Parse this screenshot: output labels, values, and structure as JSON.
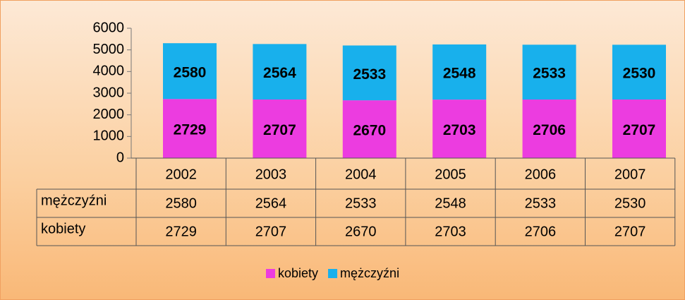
{
  "chart_data": {
    "type": "stacked_bar",
    "categories": [
      "2002",
      "2003",
      "2004",
      "2005",
      "2006",
      "2007"
    ],
    "series": [
      {
        "name": "kobiety",
        "color": "#ec3ce0",
        "values": [
          2729,
          2707,
          2670,
          2703,
          2706,
          2707
        ]
      },
      {
        "name": "mężczyźni",
        "color": "#18b0ec",
        "values": [
          2580,
          2564,
          2533,
          2548,
          2533,
          2530
        ]
      }
    ],
    "ylim": [
      0,
      6000
    ],
    "yticks": [
      0,
      1000,
      2000,
      3000,
      4000,
      5000,
      6000
    ],
    "grid": false,
    "legend": "bottom",
    "data_table": true
  }
}
